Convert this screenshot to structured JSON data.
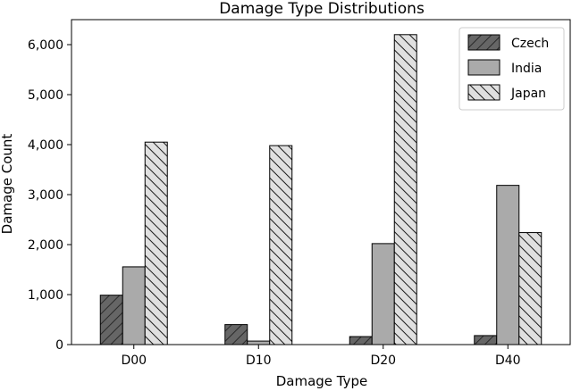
{
  "chart_data": {
    "type": "bar",
    "title": "Damage Type Distributions",
    "xlabel": "Damage Type",
    "ylabel": "Damage Count",
    "categories": [
      "D00",
      "D10",
      "D20",
      "D40"
    ],
    "ylim": [
      0,
      6500
    ],
    "yticks": [
      0,
      1000,
      2000,
      3000,
      4000,
      5000,
      6000
    ],
    "ytick_labels": [
      "0",
      "1,000",
      "2,000",
      "3,000",
      "4,000",
      "5,000",
      "6,000"
    ],
    "series": [
      {
        "name": "Czech",
        "values": [
          988,
          400,
          160,
          180
        ],
        "color": "#666666",
        "hatch": "forward"
      },
      {
        "name": "India",
        "values": [
          1555,
          70,
          2020,
          3185
        ],
        "color": "#aaaaaa",
        "hatch": "none"
      },
      {
        "name": "Japan",
        "values": [
          4050,
          3980,
          6200,
          2240
        ],
        "color": "#e0e0e0",
        "hatch": "back"
      }
    ],
    "legend_position": "top-right",
    "grid": false
  }
}
